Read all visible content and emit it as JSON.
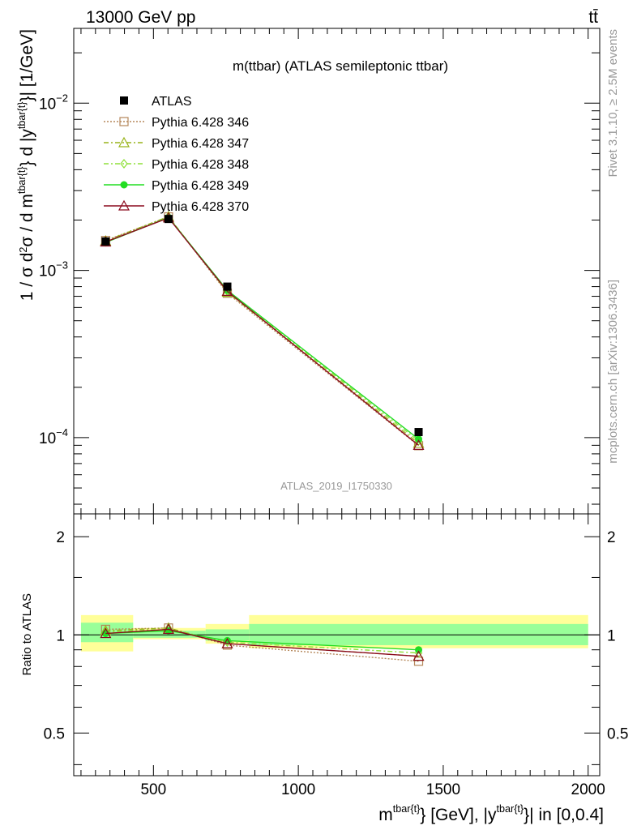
{
  "header": {
    "energy_label": "13000 GeV pp",
    "process_label": "tt̄",
    "subtitle": "m(ttbar) (ATLAS semileptonic ttbar)",
    "analysis_id": "ATLAS_2019_I1750330",
    "side_rivet": "Rivet 3.1.10, ≥ 2.5M events",
    "side_site": "mcplots.cern.ch [arXiv:1306.3436]"
  },
  "axes": {
    "ylabel_main": "1 / σ d²σ / d m^{tbar{t}} d |y^{tbar{t}}| [1/GeV]",
    "ylabel_ratio": "Ratio to ATLAS",
    "xlabel": "m^{tbar{t}} [GeV], |y^{tbar{t}}| in [0,0.4]",
    "x_ticks": [
      "500",
      "1000",
      "1500",
      "2000"
    ],
    "main_ticks": [
      "10⁻⁴",
      "10⁻³",
      "10⁻²"
    ],
    "ratio_ticks": [
      "0.5",
      "1",
      "2"
    ]
  },
  "chart_data": {
    "type": "line",
    "x_range": [
      225,
      2040
    ],
    "main_y_range": [
      3.5e-05,
      0.028
    ],
    "main_y_scale": "log",
    "ratio_y_range": [
      0.37,
      2.35
    ],
    "ratio_y_scale": "log",
    "bins": [
      [
        250,
        430
      ],
      [
        430,
        680
      ],
      [
        680,
        830
      ],
      [
        830,
        2000
      ]
    ],
    "x": [
      335,
      552,
      755,
      1415
    ],
    "data": {
      "name": "ATLAS",
      "values": [
        0.00149,
        0.00203,
        0.0008,
        0.000108
      ],
      "ratio_band_inner": [
        [
          0.95,
          1.09
        ],
        [
          0.98,
          1.03
        ],
        [
          0.96,
          1.04
        ],
        [
          0.93,
          1.08
        ]
      ],
      "ratio_band_outer": [
        [
          0.89,
          1.15
        ],
        [
          0.97,
          1.05
        ],
        [
          0.94,
          1.08
        ],
        [
          0.91,
          1.15
        ]
      ]
    },
    "series": [
      {
        "name": "Pythia 6.428 346",
        "color": "#b5875a",
        "dash": "2,2",
        "marker": "square",
        "values": [
          0.00151,
          0.00209,
          0.00073,
          8.95e-05
        ],
        "ratio": [
          1.04,
          1.05,
          0.93,
          0.83
        ]
      },
      {
        "name": "Pythia 6.428 347",
        "color": "#99b31a",
        "dash": "6,3,2,3",
        "marker": "triangle",
        "values": [
          0.0015,
          0.0021,
          0.00074,
          9.25e-05
        ],
        "ratio": [
          1.03,
          1.05,
          0.94,
          0.86
        ]
      },
      {
        "name": "Pythia 6.428 348",
        "color": "#8fe03a",
        "dash": "6,3,2,3",
        "marker": "diamond",
        "values": [
          0.00148,
          0.00208,
          0.00075,
          9.55e-05
        ],
        "ratio": [
          1.02,
          1.04,
          0.95,
          0.88
        ]
      },
      {
        "name": "Pythia 6.428 349",
        "color": "#22dd22",
        "dash": "",
        "marker": "circle",
        "values": [
          0.00147,
          0.00207,
          0.00076,
          9.8e-05
        ],
        "ratio": [
          1.01,
          1.03,
          0.96,
          0.9
        ]
      },
      {
        "name": "Pythia 6.428 370",
        "color": "#8b0a1e",
        "dash": "",
        "marker": "triangle",
        "values": [
          0.00148,
          0.00206,
          0.00075,
          9e-05
        ],
        "ratio": [
          1.01,
          1.04,
          0.94,
          0.86
        ]
      }
    ]
  }
}
